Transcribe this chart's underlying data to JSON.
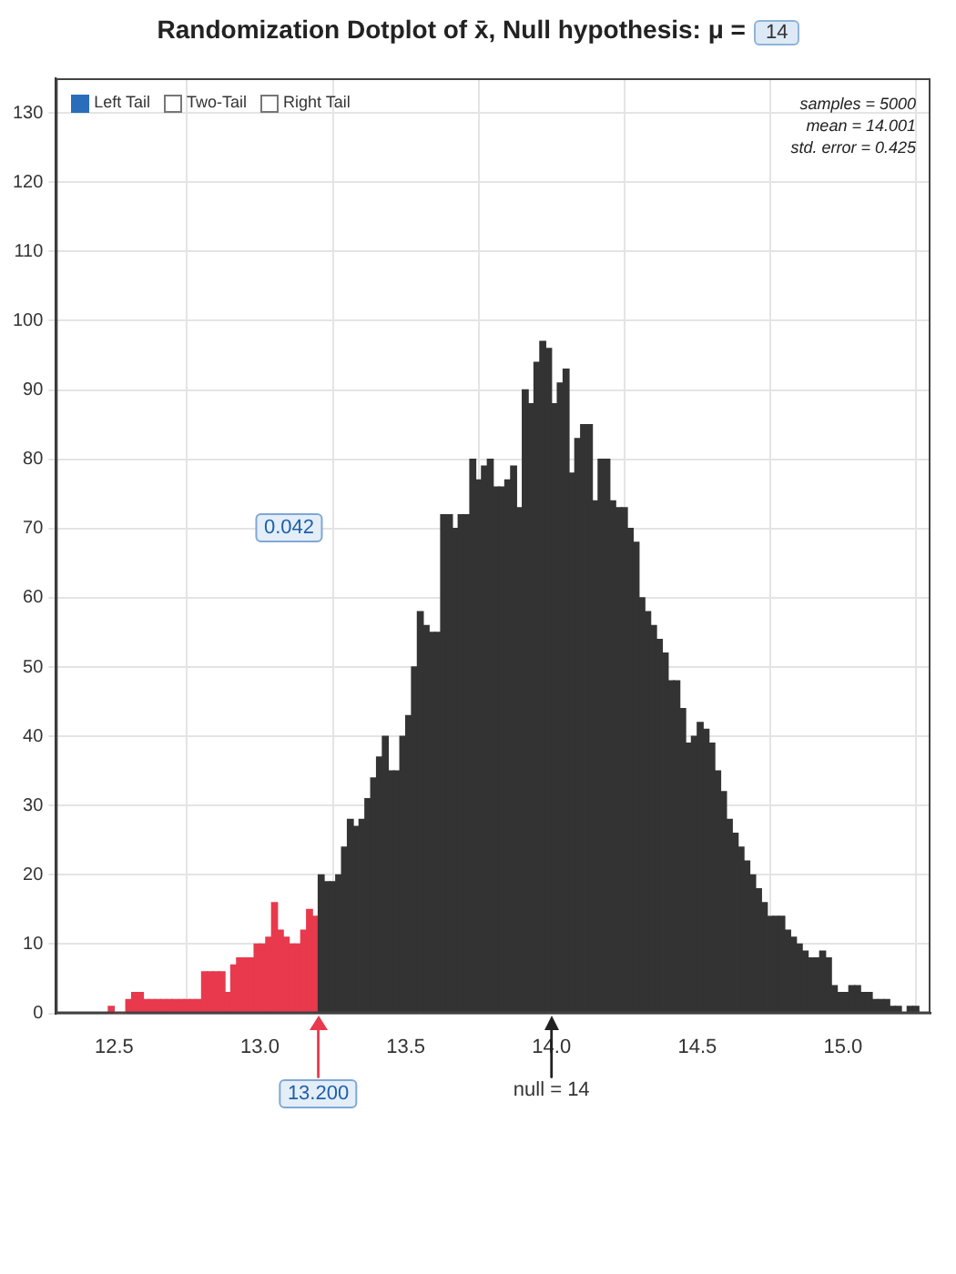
{
  "chart_data": {
    "type": "histogram",
    "title": "Randomization Dotplot of x̄, Null hypothesis: μ =",
    "bins": [
      12.48,
      12.5,
      12.52,
      12.54,
      12.56,
      12.58,
      12.6,
      12.62,
      12.64,
      12.66,
      12.68,
      12.7,
      12.72,
      12.74,
      12.76,
      12.78,
      12.8,
      12.82,
      12.84,
      12.86,
      12.88,
      12.9,
      12.92,
      12.94,
      12.96,
      12.98,
      13,
      13.02,
      13.04,
      13.06,
      13.08,
      13.1,
      13.12,
      13.14,
      13.16,
      13.18,
      13.2,
      13.22,
      13.24,
      13.26,
      13.28,
      13.3,
      13.32,
      13.34,
      13.36,
      13.38,
      13.4,
      13.42,
      13.44,
      13.46,
      13.48,
      13.5,
      13.52,
      13.54,
      13.56,
      13.58,
      13.6,
      13.62,
      13.64,
      13.66,
      13.68,
      13.7,
      13.72,
      13.74,
      13.76,
      13.78,
      13.8,
      13.82,
      13.84,
      13.86,
      13.88,
      13.9,
      13.92,
      13.94,
      13.96,
      13.98,
      14,
      14.02,
      14.04,
      14.06,
      14.08,
      14.1,
      14.12,
      14.14,
      14.16,
      14.18,
      14.2,
      14.22,
      14.24,
      14.26,
      14.28,
      14.3,
      14.32,
      14.34,
      14.36,
      14.38,
      14.4,
      14.42,
      14.44,
      14.46,
      14.48,
      14.5,
      14.52,
      14.54,
      14.56,
      14.58,
      14.6,
      14.62,
      14.64,
      14.66,
      14.68,
      14.7,
      14.72,
      14.74,
      14.76,
      14.78,
      14.8,
      14.82,
      14.84,
      14.86,
      14.88,
      14.9,
      14.92,
      14.94,
      14.96,
      14.98,
      15,
      15.02,
      15.04,
      15.06,
      15.08,
      15.1,
      15.12,
      15.14,
      15.16,
      15.18,
      15.2,
      15.22,
      15.24,
      15.26,
      15.28
    ],
    "values": [
      1,
      0,
      0,
      2,
      3,
      3,
      2,
      2,
      2,
      2,
      2,
      2,
      2,
      2,
      2,
      2,
      6,
      6,
      6,
      6,
      3,
      7,
      8,
      8,
      8,
      10,
      10,
      11,
      16,
      12,
      11,
      10,
      10,
      12,
      15,
      14,
      20,
      19,
      19,
      20,
      24,
      28,
      27,
      28,
      31,
      34,
      37,
      40,
      35,
      35,
      40,
      43,
      50,
      58,
      56,
      55,
      55,
      72,
      72,
      70,
      72,
      72,
      80,
      77,
      79,
      80,
      76,
      76,
      77,
      79,
      73,
      90,
      88,
      94,
      97,
      96,
      88,
      91,
      93,
      78,
      83,
      85,
      85,
      74,
      80,
      80,
      74,
      73,
      73,
      70,
      68,
      60,
      58,
      56,
      54,
      52,
      48,
      48,
      44,
      39,
      40,
      42,
      41,
      39,
      35,
      32,
      28,
      26,
      24,
      22,
      20,
      18,
      16,
      14,
      14,
      14,
      12,
      11,
      10,
      9,
      8,
      8,
      9,
      8,
      4,
      3,
      3,
      4,
      4,
      3,
      3,
      2,
      2,
      2,
      1,
      1,
      0,
      1,
      1,
      0
    ],
    "colors": [
      "#e8394d",
      "#e8394d",
      "#e8394d",
      "#e8394d",
      "#e8394d",
      "#e8394d",
      "#e8394d",
      "#e8394d",
      "#e8394d",
      "#e8394d",
      "#e8394d",
      "#e8394d",
      "#e8394d",
      "#e8394d",
      "#e8394d",
      "#e8394d",
      "#e8394d",
      "#e8394d",
      "#e8394d",
      "#e8394d",
      "#e8394d",
      "#e8394d",
      "#e8394d",
      "#e8394d",
      "#e8394d",
      "#e8394d",
      "#e8394d",
      "#e8394d",
      "#e8394d",
      "#e8394d",
      "#e8394d",
      "#e8394d",
      "#e8394d",
      "#e8394d",
      "#e8394d",
      "#e8394d",
      "#333333",
      "#333333",
      "#333333",
      "#333333",
      "#333333",
      "#333333",
      "#333333",
      "#333333",
      "#333333",
      "#333333",
      "#333333",
      "#333333",
      "#333333",
      "#333333",
      "#333333",
      "#333333",
      "#333333",
      "#333333",
      "#333333",
      "#333333",
      "#333333",
      "#333333",
      "#333333",
      "#333333",
      "#333333",
      "#333333",
      "#333333",
      "#333333",
      "#333333",
      "#333333",
      "#333333",
      "#333333",
      "#333333",
      "#333333",
      "#333333",
      "#333333",
      "#333333",
      "#333333",
      "#333333",
      "#333333",
      "#333333",
      "#333333",
      "#333333",
      "#333333",
      "#333333",
      "#333333",
      "#333333",
      "#333333",
      "#333333",
      "#333333",
      "#333333",
      "#333333",
      "#333333",
      "#333333",
      "#333333",
      "#333333",
      "#333333",
      "#333333",
      "#333333",
      "#333333",
      "#333333",
      "#333333",
      "#333333",
      "#333333",
      "#333333",
      "#333333",
      "#333333",
      "#333333",
      "#333333",
      "#333333",
      "#333333",
      "#333333",
      "#333333",
      "#333333",
      "#333333",
      "#333333",
      "#333333",
      "#333333",
      "#333333",
      "#333333",
      "#333333",
      "#333333",
      "#333333",
      "#333333",
      "#333333",
      "#333333",
      "#333333",
      "#333333",
      "#333333",
      "#333333",
      "#333333",
      "#333333",
      "#333333",
      "#333333",
      "#333333",
      "#333333",
      "#333333",
      "#333333",
      "#333333",
      "#333333",
      "#333333",
      "#333333",
      "#333333",
      "#333333"
    ],
    "xlim": [
      12.3,
      15.3
    ],
    "ylim": [
      0,
      135
    ],
    "xticks": [
      12.5,
      {
        "value": 13,
        "label": "13.0"
      },
      13.5,
      {
        "value": 14,
        "label": "14.0"
      },
      14.5,
      {
        "value": 15,
        "label": "15.0"
      }
    ],
    "yticks": [
      0,
      10,
      20,
      30,
      40,
      50,
      60,
      70,
      80,
      90,
      100,
      110,
      120,
      130
    ],
    "grid": true,
    "ref_lines": [
      {
        "axis": "x",
        "value": 13.2,
        "label": "13.200",
        "color": "#e8394d"
      },
      {
        "axis": "x",
        "value": 14,
        "label": "null = 14",
        "color": "#222222"
      }
    ],
    "annotations": [
      "14",
      "Left Tail",
      "Two-Tail",
      "Right Tail",
      "samples = 5000",
      "mean = 14.001",
      "std. error = 0.425",
      {
        "text": "0.042",
        "x": 13.1,
        "y": 70
      }
    ]
  }
}
